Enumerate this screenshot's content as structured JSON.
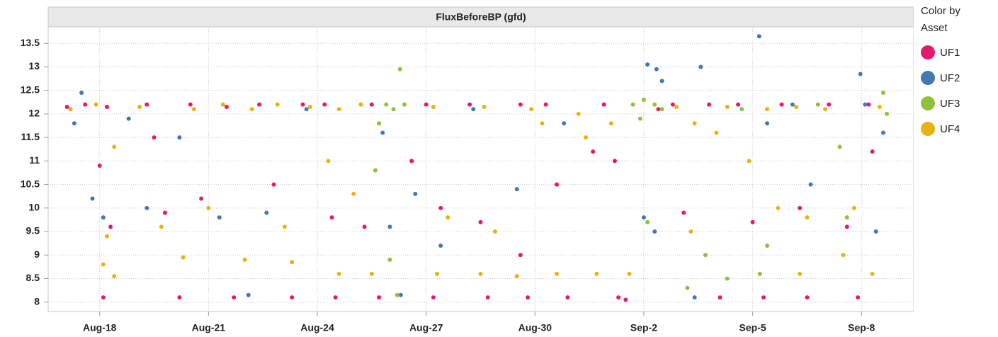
{
  "chart_data": {
    "type": "scatter",
    "title": "FluxBeforeBP (gfd)",
    "legend_title": "Color by Asset",
    "xlim": [
      16.58,
      40.44
    ],
    "ylim": [
      7.8,
      13.85
    ],
    "xticks": [
      {
        "value": 18,
        "label": "Aug-18"
      },
      {
        "value": 21,
        "label": "Aug-21"
      },
      {
        "value": 24,
        "label": "Aug-24"
      },
      {
        "value": 27,
        "label": "Aug-27"
      },
      {
        "value": 30,
        "label": "Aug-30"
      },
      {
        "value": 33,
        "label": "Sep-2"
      },
      {
        "value": 36,
        "label": "Sep-5"
      },
      {
        "value": 39,
        "label": "Sep-8"
      }
    ],
    "yticks": [
      8,
      8.5,
      9,
      9.5,
      10,
      10.5,
      11,
      11.5,
      12,
      12.5,
      13,
      13.5
    ],
    "grid": true,
    "legend": "right",
    "series": [
      {
        "name": "UF1",
        "color": "#e6186c",
        "x": [
          17.1,
          17.6,
          18.2,
          18.0,
          18.3,
          18.1,
          19.3,
          19.5,
          19.8,
          20.2,
          20.5,
          20.8,
          21.5,
          21.7,
          22.4,
          22.8,
          23.3,
          23.6,
          24.2,
          24.4,
          24.5,
          25.5,
          25.3,
          25.7,
          26.6,
          27.0,
          27.4,
          27.2,
          28.2,
          28.5,
          28.7,
          29.6,
          29.6,
          29.8,
          30.3,
          30.6,
          30.9,
          31.6,
          31.9,
          32.2,
          32.3,
          32.5,
          33.4,
          33.8,
          34.1,
          34.8,
          35.1,
          35.6,
          36.0,
          36.3,
          36.8,
          37.3,
          37.5,
          38.1,
          38.6,
          38.9,
          39.3,
          39.2
        ],
        "values": [
          12.15,
          12.2,
          12.15,
          10.9,
          9.6,
          8.1,
          12.2,
          11.5,
          9.9,
          8.1,
          12.2,
          10.2,
          12.15,
          8.1,
          12.2,
          10.5,
          8.1,
          12.2,
          12.2,
          9.8,
          8.1,
          12.2,
          9.6,
          8.1,
          11.0,
          12.2,
          10.0,
          8.1,
          12.2,
          9.7,
          8.1,
          12.2,
          9.0,
          8.1,
          12.2,
          10.5,
          8.1,
          11.2,
          12.2,
          11.0,
          8.1,
          8.05,
          12.1,
          12.2,
          9.9,
          12.2,
          8.1,
          12.2,
          9.7,
          8.1,
          12.2,
          10.0,
          8.1,
          12.2,
          9.6,
          8.1,
          11.2,
          12.2
        ]
      },
      {
        "name": "UF2",
        "color": "#4678b0",
        "x": [
          17.5,
          17.3,
          17.8,
          18.1,
          18.8,
          19.3,
          20.2,
          21.3,
          22.1,
          22.6,
          23.7,
          25.8,
          26.0,
          26.3,
          26.7,
          27.4,
          28.3,
          29.5,
          30.8,
          33.1,
          33.35,
          33.5,
          33.0,
          33.3,
          34.57,
          34.4,
          36.18,
          36.4,
          37.1,
          37.6,
          38.97,
          39.1,
          39.4,
          39.6
        ],
        "values": [
          12.45,
          11.8,
          10.2,
          9.8,
          11.9,
          10.0,
          11.5,
          9.8,
          8.15,
          9.9,
          12.1,
          11.6,
          9.6,
          8.15,
          10.3,
          9.2,
          12.1,
          10.4,
          11.8,
          13.05,
          12.95,
          12.7,
          9.8,
          9.5,
          13.0,
          8.1,
          13.65,
          11.8,
          12.2,
          10.5,
          12.85,
          12.2,
          9.5,
          11.6
        ]
      },
      {
        "name": "UF3",
        "color": "#8fc13e",
        "x": [
          26.28,
          25.9,
          26.1,
          26.4,
          25.7,
          25.6,
          26.0,
          26.2,
          32.7,
          33.0,
          33.3,
          33.5,
          32.9,
          33.1,
          34.2,
          34.7,
          35.3,
          36.2,
          36.4,
          37.8,
          38.4,
          39.6,
          39.7,
          38.6,
          35.7
        ],
        "values": [
          12.95,
          12.2,
          12.1,
          12.2,
          11.8,
          10.8,
          8.9,
          8.15,
          12.2,
          12.3,
          12.2,
          12.1,
          11.9,
          9.7,
          8.3,
          9.0,
          8.5,
          8.6,
          9.2,
          12.2,
          11.3,
          12.45,
          12.0,
          9.8,
          12.1
        ]
      },
      {
        "name": "UF4",
        "color": "#e6b312",
        "x": [
          17.2,
          17.9,
          18.4,
          18.2,
          18.1,
          18.4,
          19.1,
          19.7,
          20.3,
          20.6,
          21.0,
          21.4,
          22.0,
          22.2,
          22.9,
          23.1,
          23.3,
          23.8,
          24.6,
          24.3,
          24.6,
          25.2,
          25.5,
          25.0,
          27.2,
          27.6,
          27.3,
          28.6,
          28.9,
          28.5,
          29.5,
          29.9,
          30.2,
          30.6,
          31.2,
          31.4,
          31.7,
          32.1,
          32.6,
          33.9,
          34.4,
          34.3,
          35.0,
          35.3,
          35.9,
          36.4,
          36.7,
          37.2,
          37.5,
          37.3,
          38.0,
          38.8,
          38.5,
          39.5,
          39.3
        ],
        "values": [
          12.1,
          12.2,
          11.3,
          9.4,
          8.8,
          8.55,
          12.15,
          9.6,
          8.95,
          12.1,
          10.0,
          12.2,
          8.9,
          12.1,
          12.2,
          9.6,
          8.85,
          12.15,
          12.1,
          11.0,
          8.6,
          12.2,
          8.6,
          10.3,
          12.15,
          9.8,
          8.6,
          12.15,
          9.5,
          8.6,
          8.55,
          12.1,
          11.8,
          8.6,
          12.0,
          11.5,
          8.6,
          11.8,
          8.6,
          12.15,
          11.8,
          9.5,
          11.6,
          12.15,
          11.0,
          12.1,
          10.0,
          12.15,
          9.8,
          8.6,
          12.1,
          10.0,
          9.0,
          12.15,
          8.6
        ]
      }
    ]
  }
}
